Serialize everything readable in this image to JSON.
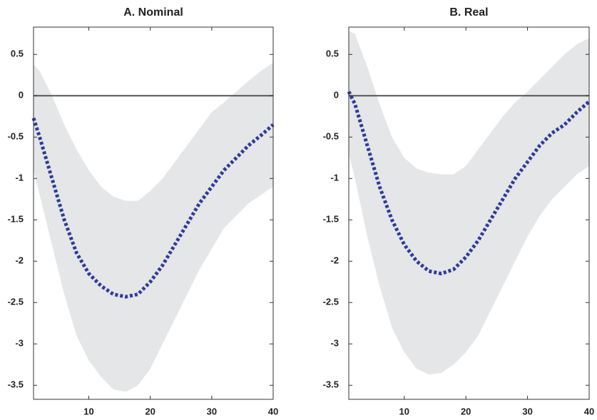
{
  "chart_data": [
    {
      "type": "line",
      "title": "A. Nominal",
      "x": [
        1,
        2,
        4,
        6,
        8,
        10,
        12,
        14,
        16,
        18,
        20,
        22,
        24,
        26,
        28,
        30,
        32,
        34,
        36,
        38,
        40
      ],
      "series": [
        {
          "color": "#2e3a9e",
          "style": "dotted",
          "values": [
            -0.27,
            -0.5,
            -1.0,
            -1.5,
            -1.9,
            -2.15,
            -2.3,
            -2.4,
            -2.43,
            -2.4,
            -2.25,
            -2.05,
            -1.8,
            -1.55,
            -1.3,
            -1.1,
            -0.9,
            -0.75,
            -0.6,
            -0.48,
            -0.35
          ]
        }
      ],
      "band": {
        "color": "#e4e6e7",
        "lower": [
          -0.9,
          -1.2,
          -1.8,
          -2.4,
          -2.9,
          -3.2,
          -3.4,
          -3.55,
          -3.58,
          -3.5,
          -3.3,
          -3.0,
          -2.7,
          -2.4,
          -2.1,
          -1.85,
          -1.6,
          -1.45,
          -1.3,
          -1.2,
          -1.1
        ],
        "upper": [
          0.38,
          0.3,
          0.0,
          -0.35,
          -0.65,
          -0.9,
          -1.1,
          -1.22,
          -1.27,
          -1.27,
          -1.15,
          -1.0,
          -0.8,
          -0.6,
          -0.4,
          -0.2,
          -0.08,
          0.05,
          0.18,
          0.3,
          0.4
        ]
      },
      "reference_line": {
        "value": 0,
        "color": "#555555"
      },
      "xlim": [
        1,
        40
      ],
      "xticks": [
        10,
        20,
        30,
        40
      ],
      "ylim": [
        -3.67,
        0.83
      ],
      "yticks": [
        0.5,
        0,
        -0.5,
        -1,
        -1.5,
        -2,
        -2.5,
        -3,
        -3.5
      ]
    },
    {
      "type": "line",
      "title": "B. Real",
      "x": [
        1,
        2,
        4,
        6,
        8,
        10,
        12,
        14,
        16,
        18,
        20,
        22,
        24,
        26,
        28,
        30,
        32,
        34,
        36,
        38,
        40
      ],
      "series": [
        {
          "color": "#2e3a9e",
          "style": "dotted",
          "values": [
            0.05,
            -0.1,
            -0.6,
            -1.1,
            -1.5,
            -1.8,
            -2.0,
            -2.12,
            -2.15,
            -2.1,
            -1.95,
            -1.75,
            -1.5,
            -1.25,
            -1.0,
            -0.8,
            -0.6,
            -0.45,
            -0.35,
            -0.2,
            -0.07
          ]
        }
      ],
      "band": {
        "color": "#e4e6e7",
        "lower": [
          -0.7,
          -1.0,
          -1.7,
          -2.3,
          -2.8,
          -3.1,
          -3.3,
          -3.37,
          -3.35,
          -3.25,
          -3.1,
          -2.9,
          -2.6,
          -2.3,
          -2.0,
          -1.7,
          -1.45,
          -1.25,
          -1.1,
          -0.95,
          -0.85
        ],
        "upper": [
          0.78,
          0.75,
          0.35,
          -0.1,
          -0.5,
          -0.75,
          -0.88,
          -0.93,
          -0.95,
          -0.95,
          -0.85,
          -0.65,
          -0.45,
          -0.25,
          -0.08,
          0.05,
          0.2,
          0.35,
          0.5,
          0.62,
          0.7
        ]
      },
      "reference_line": {
        "value": 0,
        "color": "#555555"
      },
      "xlim": [
        1,
        40
      ],
      "xticks": [
        10,
        20,
        30,
        40
      ],
      "ylim": [
        -3.67,
        0.83
      ],
      "yticks": [
        0.5,
        0,
        -0.5,
        -1,
        -1.5,
        -2,
        -2.5,
        -3,
        -3.5
      ]
    }
  ]
}
